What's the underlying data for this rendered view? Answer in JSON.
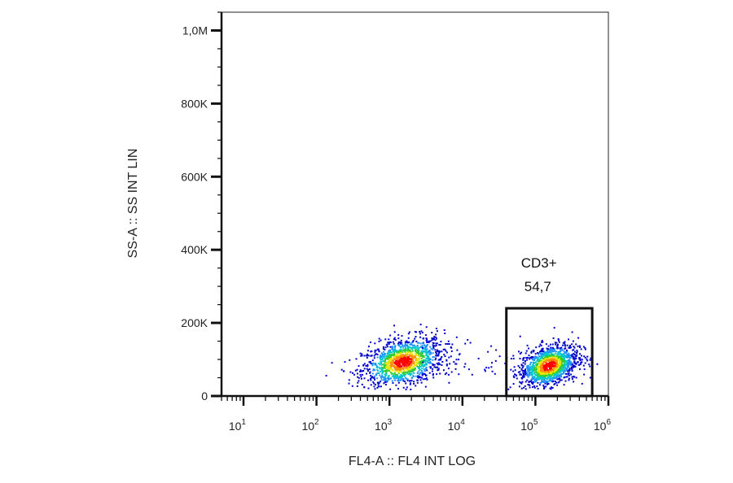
{
  "chart_data": {
    "type": "scatter",
    "subtype": "flow-cytometry-density-dot-plot",
    "title": "",
    "xlabel": "FL4-A :: FL4 INT LOG",
    "ylabel": "SS-A :: SS INT LIN",
    "x_scale": "log",
    "xlim": [
      5,
      1000000
    ],
    "ylim": [
      0,
      1050000
    ],
    "x_ticks": [
      {
        "base": "10",
        "exp": "1"
      },
      {
        "base": "10",
        "exp": "2"
      },
      {
        "base": "10",
        "exp": "3"
      },
      {
        "base": "10",
        "exp": "4"
      },
      {
        "base": "10",
        "exp": "5"
      },
      {
        "base": "10",
        "exp": "6"
      }
    ],
    "y_ticks": [
      {
        "value": 0,
        "label": "0"
      },
      {
        "value": 200000,
        "label": "200K"
      },
      {
        "value": 400000,
        "label": "400K"
      },
      {
        "value": 600000,
        "label": "600K"
      },
      {
        "value": 800000,
        "label": "800K"
      },
      {
        "value": 1000000,
        "label": "1,0M"
      }
    ],
    "populations": [
      {
        "center_x": 1500,
        "center_y": 95000,
        "spread_log_x": 0.28,
        "spread_y": 32000
      },
      {
        "center_x": 150000,
        "center_y": 85000,
        "spread_log_x": 0.2,
        "spread_y": 28000
      }
    ],
    "gates": [
      {
        "name": "CD3+",
        "value": "54,7",
        "x_range": [
          40000,
          600000
        ],
        "y_range": [
          0,
          240000
        ]
      }
    ],
    "density_colors": [
      "#0000cc",
      "#1e90ff",
      "#00c8c8",
      "#33cc33",
      "#e6e600",
      "#ff8c00",
      "#ff0000"
    ]
  }
}
